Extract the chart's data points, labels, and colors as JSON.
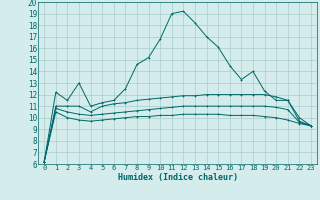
{
  "title": "",
  "xlabel": "Humidex (Indice chaleur)",
  "ylabel": "",
  "bg_color": "#d4ecec",
  "grid_color": "#aacccc",
  "line_color": "#006666",
  "xlim": [
    -0.5,
    23.5
  ],
  "ylim": [
    6,
    20
  ],
  "xticks": [
    0,
    1,
    2,
    3,
    4,
    5,
    6,
    7,
    8,
    9,
    10,
    11,
    12,
    13,
    14,
    15,
    16,
    17,
    18,
    19,
    20,
    21,
    22,
    23
  ],
  "yticks": [
    6,
    7,
    8,
    9,
    10,
    11,
    12,
    13,
    14,
    15,
    16,
    17,
    18,
    19,
    20
  ],
  "series": {
    "main": [
      6.2,
      12.2,
      11.5,
      13.0,
      11.0,
      11.3,
      11.5,
      12.5,
      14.6,
      15.2,
      16.8,
      19.0,
      19.2,
      18.2,
      17.0,
      16.1,
      14.5,
      13.3,
      14.0,
      12.3,
      11.5,
      11.5,
      10.0,
      9.3
    ],
    "upper": [
      6.2,
      11.0,
      11.0,
      11.0,
      10.5,
      11.0,
      11.2,
      11.3,
      11.5,
      11.6,
      11.7,
      11.8,
      11.9,
      11.9,
      12.0,
      12.0,
      12.0,
      12.0,
      12.0,
      12.0,
      11.8,
      11.5,
      9.7,
      9.3
    ],
    "lower": [
      6.2,
      10.5,
      10.0,
      9.8,
      9.7,
      9.8,
      9.9,
      10.0,
      10.1,
      10.1,
      10.2,
      10.2,
      10.3,
      10.3,
      10.3,
      10.3,
      10.2,
      10.2,
      10.2,
      10.1,
      10.0,
      9.8,
      9.5,
      9.3
    ],
    "flat": [
      6.2,
      10.8,
      10.5,
      10.3,
      10.2,
      10.3,
      10.4,
      10.5,
      10.6,
      10.7,
      10.8,
      10.9,
      11.0,
      11.0,
      11.0,
      11.0,
      11.0,
      11.0,
      11.0,
      11.0,
      10.9,
      10.7,
      9.6,
      9.3
    ]
  }
}
